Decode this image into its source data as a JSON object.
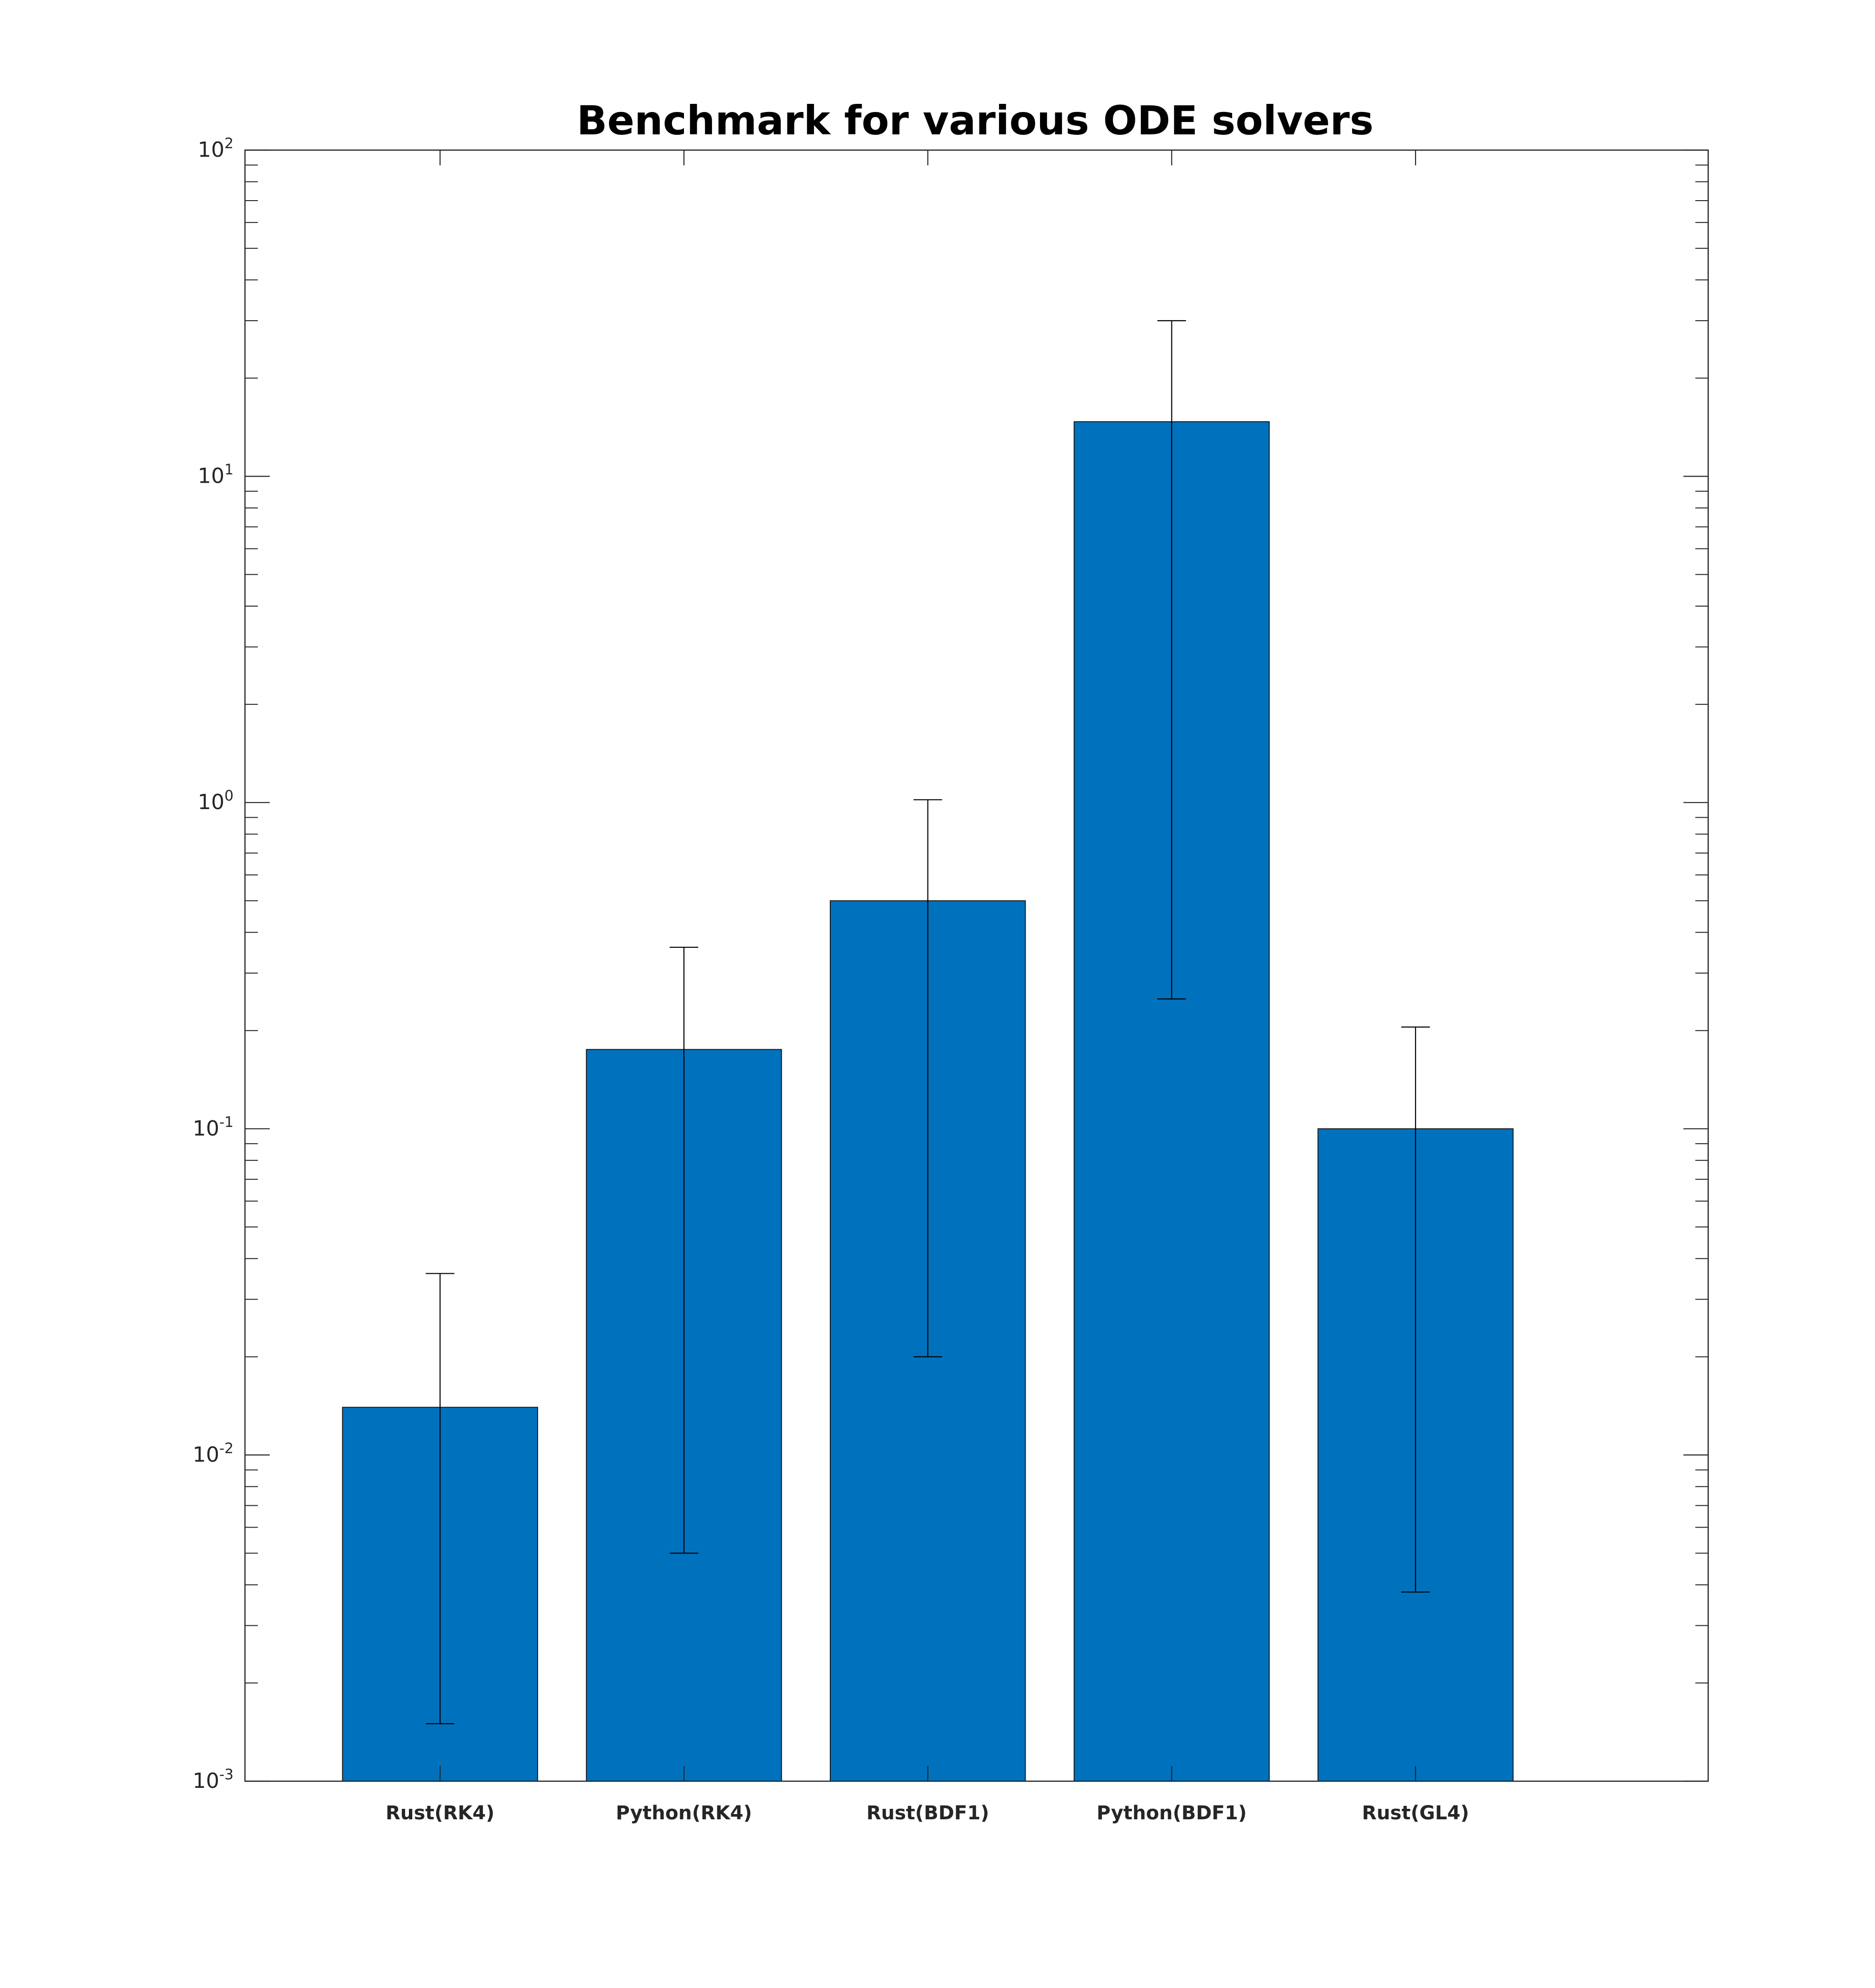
{
  "chart_data": {
    "type": "bar",
    "title": "Benchmark for various ODE solvers",
    "xlabel": "",
    "ylabel": "",
    "categories": [
      "Rust(RK4)",
      "Python(RK4)",
      "Rust(BDF1)",
      "Python(BDF1)",
      "Rust(GL4)"
    ],
    "values": [
      0.014,
      0.175,
      0.5,
      14.7,
      0.1
    ],
    "error_low": [
      0.0015,
      0.005,
      0.02,
      0.25,
      0.0038
    ],
    "error_high": [
      0.036,
      0.36,
      1.02,
      30,
      0.205
    ],
    "y_scale": "log",
    "ylim": [
      0.001,
      100
    ],
    "y_ticks": [
      {
        "base": "10",
        "exp": "-3",
        "value": 0.001
      },
      {
        "base": "10",
        "exp": "-2",
        "value": 0.01
      },
      {
        "base": "10",
        "exp": "-1",
        "value": 0.1
      },
      {
        "base": "10",
        "exp": "0",
        "value": 1
      },
      {
        "base": "10",
        "exp": "1",
        "value": 10
      },
      {
        "base": "10",
        "exp": "2",
        "value": 100
      }
    ],
    "grid": false,
    "legend": "none",
    "bar_color": "#0072BD",
    "axis_color": "#262626"
  }
}
